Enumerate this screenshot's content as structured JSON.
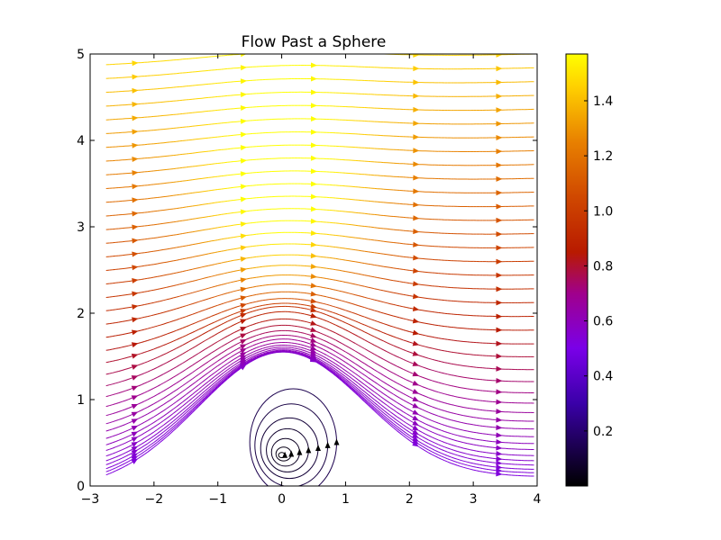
{
  "chart_data": {
    "type": "streamplot",
    "title": "Flow Past a Sphere",
    "xlabel": "",
    "ylabel": "",
    "xlim": [
      -3,
      4
    ],
    "ylim": [
      0,
      5
    ],
    "x_ticks": [
      "−3",
      "−2",
      "−1",
      "0",
      "1",
      "2",
      "3",
      "4"
    ],
    "x_tick_values": [
      -3,
      -2,
      -1,
      0,
      1,
      2,
      3,
      4
    ],
    "y_ticks": [
      "0",
      "1",
      "2",
      "3",
      "4",
      "5"
    ],
    "y_tick_values": [
      0,
      1,
      2,
      3,
      4,
      5
    ],
    "sphere_center": [
      0,
      0.35
    ],
    "uniform_speed": 1.0,
    "colormap": "gnuplot",
    "colorbar": {
      "range": [
        0.0,
        1.57
      ],
      "ticks": [
        "0.2",
        "0.4",
        "0.6",
        "0.8",
        "1.0",
        "1.2",
        "1.4"
      ],
      "tick_values": [
        0.2,
        0.4,
        0.6,
        0.8,
        1.0,
        1.2,
        1.4
      ],
      "stops": [
        {
          "v": 0.0,
          "color": "#000000"
        },
        {
          "v": 0.3,
          "color": "#3a00a8"
        },
        {
          "v": 0.5,
          "color": "#7a00e8"
        },
        {
          "v": 0.7,
          "color": "#a0008c"
        },
        {
          "v": 0.85,
          "color": "#b81a00"
        },
        {
          "v": 1.05,
          "color": "#d04800"
        },
        {
          "v": 1.25,
          "color": "#e88000"
        },
        {
          "v": 1.45,
          "color": "#ffd000"
        },
        {
          "v": 1.57,
          "color": "#ffff00"
        }
      ]
    },
    "streamline_start_ys": [
      0.02,
      0.06,
      0.1,
      0.15,
      0.2,
      0.26,
      0.33,
      0.4,
      0.48,
      0.57,
      0.66,
      0.76,
      0.87,
      0.99,
      1.12,
      1.26,
      1.41,
      1.56,
      1.72,
      1.88,
      2.04,
      2.2,
      2.36,
      2.52,
      2.68,
      2.84,
      3.0,
      3.16,
      3.32,
      3.48,
      3.64,
      3.8,
      3.96,
      4.12,
      4.28,
      4.44,
      4.6,
      4.76,
      4.92
    ],
    "vortex_loops": [
      {
        "rx": 0.05,
        "ry": 0.03
      },
      {
        "rx": 0.12,
        "ry": 0.08
      },
      {
        "rx": 0.22,
        "ry": 0.16
      },
      {
        "rx": 0.33,
        "ry": 0.25
      },
      {
        "rx": 0.45,
        "ry": 0.35
      },
      {
        "rx": 0.57,
        "ry": 0.48
      },
      {
        "rx": 0.68,
        "ry": 0.62
      }
    ]
  }
}
